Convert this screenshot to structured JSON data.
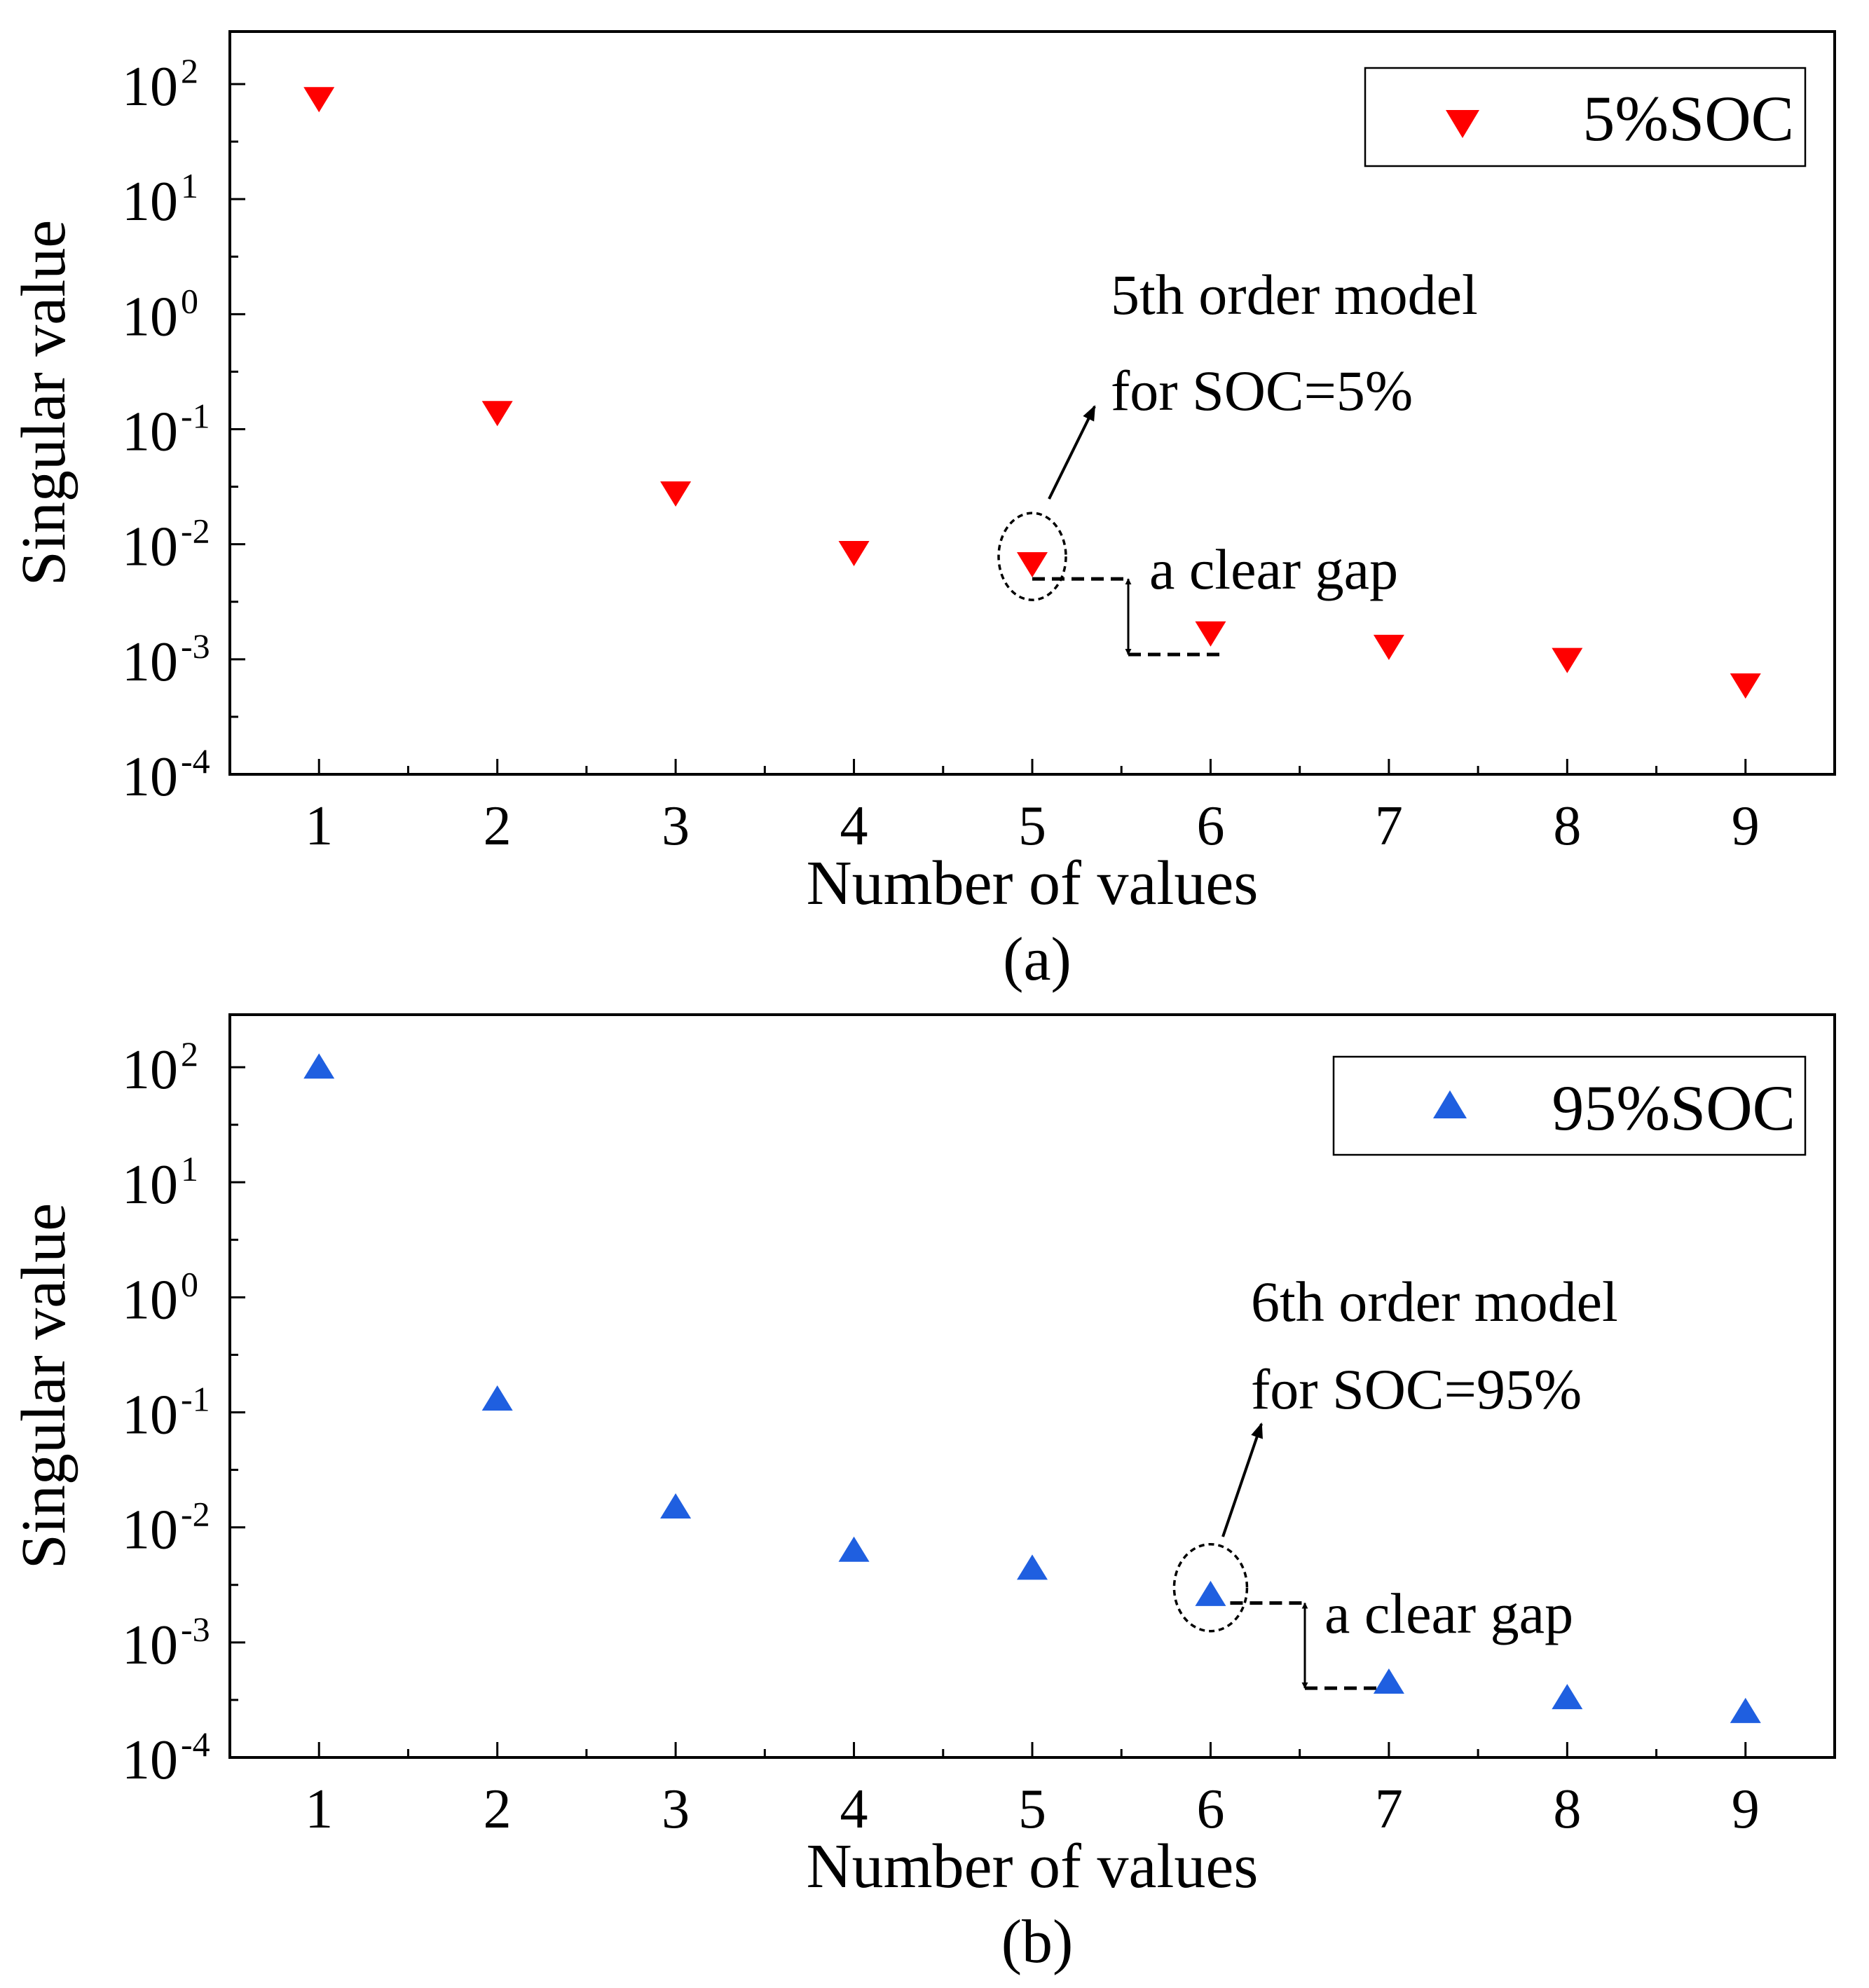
{
  "chart_data": [
    {
      "panel": "(a)",
      "type": "scatter",
      "xlabel": "Number of values",
      "ylabel": "Singular value",
      "yscale": "log",
      "ylim": [
        0.0001,
        100
      ],
      "xlim": [
        0.5,
        9.5
      ],
      "x_ticks": [
        "1",
        "2",
        "3",
        "4",
        "5",
        "6",
        "7",
        "8",
        "9"
      ],
      "y_ticks": [
        {
          "base": "10",
          "exp": "2",
          "value": 100
        },
        {
          "base": "10",
          "exp": "1",
          "value": 10
        },
        {
          "base": "10",
          "exp": "0",
          "value": 1
        },
        {
          "base": "10",
          "exp": "-1",
          "value": 0.1
        },
        {
          "base": "10",
          "exp": "-2",
          "value": 0.01
        },
        {
          "base": "10",
          "exp": "-3",
          "value": 0.001
        },
        {
          "base": "10",
          "exp": "-4",
          "value": 0.0001
        }
      ],
      "legend": {
        "label": "5%SOC",
        "placement": "top-right"
      },
      "series": [
        {
          "name": "5%SOC",
          "marker": "triangle-down",
          "color": "#ff0000",
          "x": [
            1,
            2,
            3,
            4,
            5,
            6,
            7,
            8,
            9
          ],
          "y": [
            75,
            0.14,
            0.028,
            0.0085,
            0.0068,
            0.0017,
            0.0013,
            0.001,
            0.0006
          ]
        }
      ],
      "annotations": {
        "model_line1": "5th order model",
        "model_line2": "for SOC=5%",
        "gap_label": "a clear gap",
        "highlight_x": 5,
        "gap_from": 0.005,
        "gap_to": 0.0011
      }
    },
    {
      "panel": "(b)",
      "type": "scatter",
      "xlabel": "Number of values",
      "ylabel": "Singular value",
      "yscale": "log",
      "ylim": [
        0.0001,
        100
      ],
      "xlim": [
        0.5,
        9.5
      ],
      "x_ticks": [
        "1",
        "2",
        "3",
        "4",
        "5",
        "6",
        "7",
        "8",
        "9"
      ],
      "y_ticks": [
        {
          "base": "10",
          "exp": "2",
          "value": 100
        },
        {
          "base": "10",
          "exp": "1",
          "value": 10
        },
        {
          "base": "10",
          "exp": "0",
          "value": 1
        },
        {
          "base": "10",
          "exp": "-1",
          "value": 0.1
        },
        {
          "base": "10",
          "exp": "-2",
          "value": 0.01
        },
        {
          "base": "10",
          "exp": "-3",
          "value": 0.001
        },
        {
          "base": "10",
          "exp": "-4",
          "value": 0.0001
        }
      ],
      "legend": {
        "label": "95%SOC",
        "placement": "top-right"
      },
      "series": [
        {
          "name": "95%SOC",
          "marker": "triangle-up",
          "color": "#1f5fe0",
          "x": [
            1,
            2,
            3,
            4,
            5,
            6,
            7,
            8,
            9
          ],
          "y": [
            100,
            0.13,
            0.015,
            0.0063,
            0.0044,
            0.0026,
            0.00045,
            0.00033,
            0.00025
          ]
        }
      ],
      "annotations": {
        "model_line1": "6th order model",
        "model_line2": "for SOC=95%",
        "gap_label": "a clear gap",
        "highlight_x": 6,
        "gap_from": 0.0022,
        "gap_to": 0.0004
      }
    }
  ]
}
